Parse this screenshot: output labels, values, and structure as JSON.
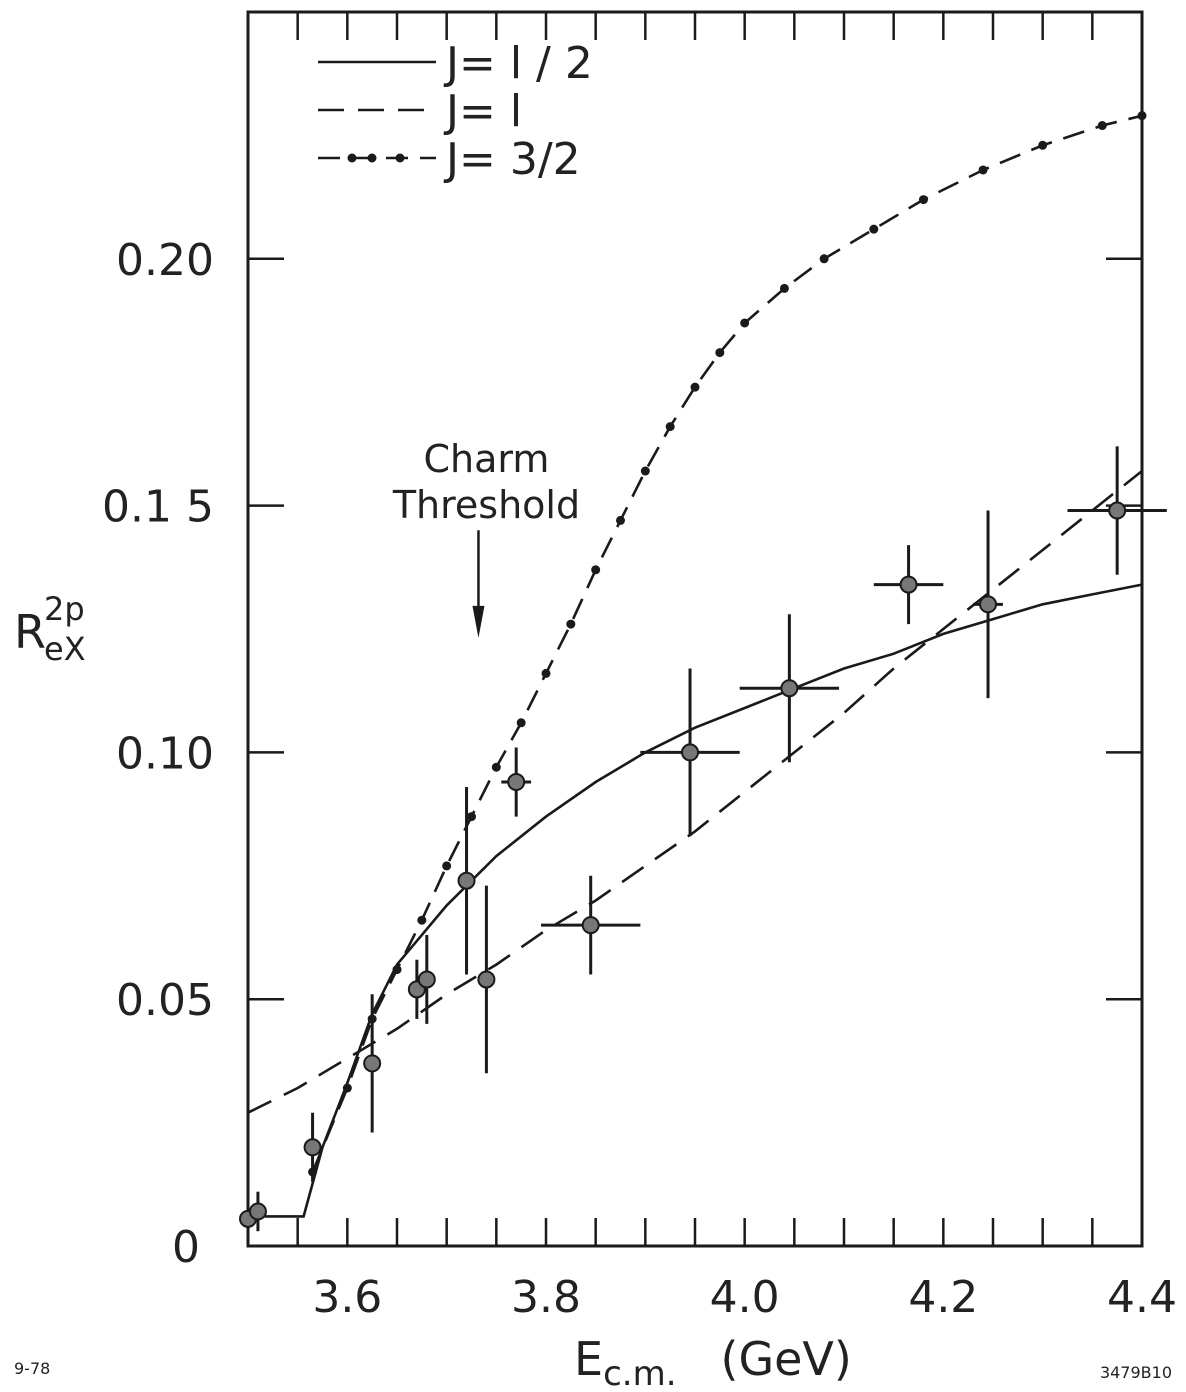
{
  "chart_data": {
    "type": "line",
    "xlabel": "E",
    "xlabel_sub": "c.m.",
    "xlabel_unit": "(GeV)",
    "ylabel": "R",
    "ylabel_sup": "2p",
    "ylabel_sub": "eX",
    "xlim": [
      3.5,
      4.4
    ],
    "ylim": [
      0,
      0.25
    ],
    "xticks": [
      3.6,
      3.8,
      4.0,
      4.2,
      4.4
    ],
    "xtick_labels": [
      "3.6",
      "3.8",
      "4.0",
      "4.2",
      "4.4"
    ],
    "yticks": [
      0,
      0.05,
      0.1,
      0.15,
      0.2
    ],
    "ytick_labels": [
      "0",
      "0.05",
      "0.10",
      "0.1 5",
      "0.20"
    ],
    "grid": false,
    "legend_position": "top-left",
    "legend": [
      {
        "label": "J= l / 2",
        "style": "solid"
      },
      {
        "label": "J= l",
        "style": "dashed"
      },
      {
        "label": "J= 3/2",
        "style": "dash-dot"
      }
    ],
    "annotation": {
      "line1": "Charm",
      "line2": "Threshold",
      "x": 3.73,
      "y_top": 0.145,
      "y_bottom": 0.124
    },
    "corner_left": "9-78",
    "corner_right": "3479B10",
    "series": [
      {
        "name": "J= l / 2",
        "style": "solid",
        "x": [
          3.5,
          3.528,
          3.556,
          3.575,
          3.6,
          3.625,
          3.65,
          3.7,
          3.75,
          3.8,
          3.85,
          3.9,
          3.95,
          4.0,
          4.05,
          4.1,
          4.15,
          4.2,
          4.25,
          4.3,
          4.35,
          4.4
        ],
        "y": [
          0.006,
          0.006,
          0.006,
          0.02,
          0.033,
          0.047,
          0.057,
          0.069,
          0.079,
          0.087,
          0.094,
          0.1,
          0.105,
          0.109,
          0.113,
          0.117,
          0.12,
          0.124,
          0.127,
          0.13,
          0.132,
          0.134
        ]
      },
      {
        "name": "J= l",
        "style": "dashed",
        "x": [
          3.5,
          3.55,
          3.6,
          3.65,
          3.7,
          3.75,
          3.8,
          3.85,
          3.9,
          3.95,
          4.0,
          4.05,
          4.1,
          4.15,
          4.2,
          4.25,
          4.3,
          4.35,
          4.4
        ],
        "y": [
          0.027,
          0.032,
          0.038,
          0.044,
          0.051,
          0.057,
          0.064,
          0.07,
          0.077,
          0.084,
          0.092,
          0.1,
          0.108,
          0.117,
          0.125,
          0.133,
          0.141,
          0.149,
          0.157
        ]
      },
      {
        "name": "J= 3/2",
        "style": "dash-dot",
        "x": [
          3.565,
          3.6,
          3.625,
          3.65,
          3.675,
          3.7,
          3.725,
          3.75,
          3.775,
          3.8,
          3.825,
          3.85,
          3.875,
          3.9,
          3.925,
          3.95,
          3.975,
          4.0,
          4.04,
          4.08,
          4.13,
          4.18,
          4.24,
          4.3,
          4.36,
          4.4
        ],
        "y": [
          0.015,
          0.032,
          0.046,
          0.056,
          0.066,
          0.077,
          0.087,
          0.097,
          0.106,
          0.116,
          0.126,
          0.137,
          0.147,
          0.157,
          0.166,
          0.174,
          0.181,
          0.187,
          0.194,
          0.2,
          0.206,
          0.212,
          0.218,
          0.223,
          0.227,
          0.229
        ]
      },
      {
        "name": "",
        "style": "points",
        "x": [
          3.5,
          3.51,
          3.565,
          3.625,
          3.67,
          3.68,
          3.72,
          3.74,
          3.77,
          3.845,
          3.945,
          4.045,
          4.165,
          4.245,
          4.375
        ],
        "y": [
          0.0055,
          0.007,
          0.02,
          0.037,
          0.052,
          0.054,
          0.074,
          0.054,
          0.094,
          0.065,
          0.1,
          0.113,
          0.134,
          0.13,
          0.149
        ],
        "yerr": [
          0.004,
          0.004,
          0.007,
          0.014,
          0.006,
          0.009,
          0.019,
          0.019,
          0.007,
          0.01,
          0.017,
          0.015,
          0.008,
          0.019,
          0.013
        ],
        "xerr": [
          0,
          0,
          0,
          0,
          0,
          0,
          0,
          0,
          0.015,
          0.05,
          0.05,
          0.05,
          0.035,
          0.015,
          0.05
        ]
      }
    ]
  }
}
